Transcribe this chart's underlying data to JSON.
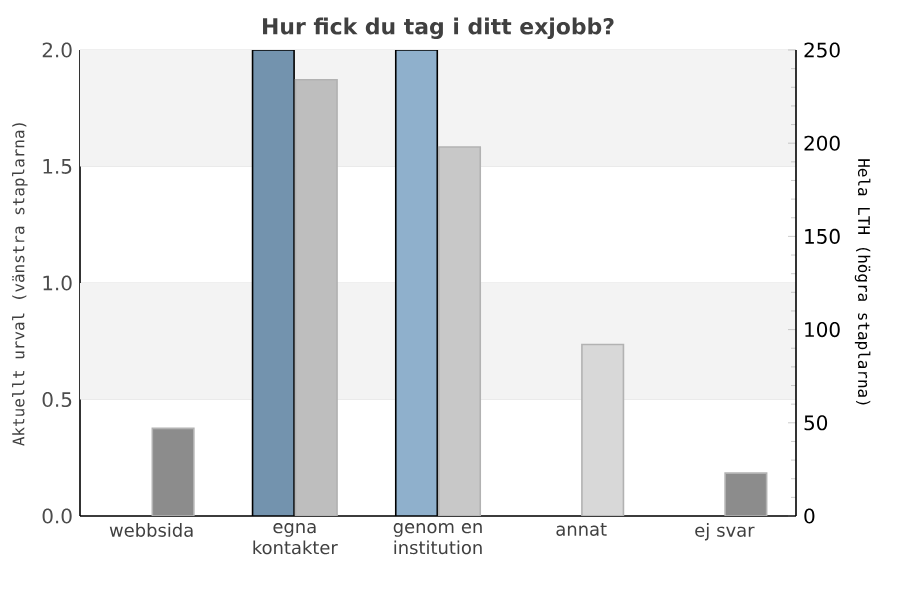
{
  "chart_data": {
    "type": "bar",
    "title": "Hur fick du tag i ditt exjobb?",
    "ylabel": "Aktuellt urval (vänstra staplarna)",
    "y2label": "Hela LTH (högra staplarna)",
    "categories": [
      "webbsida",
      "egna kontakter",
      "genom en institution",
      "annat",
      "ej svar"
    ],
    "series": [
      {
        "axis": "y",
        "colors": [
          "#7393ae",
          "#7393ae",
          "#8fb0cc",
          "#8fb0cc",
          "#8fb0cc"
        ],
        "values": [
          null,
          2,
          2,
          null,
          null
        ]
      },
      {
        "axis": "y2",
        "colors": [
          "#8c8c8c",
          "#bebebe",
          "#c8c8c8",
          "#d8d8d8",
          "#8c8c8c"
        ],
        "values": [
          47,
          234,
          198,
          92,
          23
        ]
      }
    ],
    "ylim": [
      0,
      2
    ],
    "yticks": [
      {
        "value": 0,
        "label": "0.0"
      },
      {
        "value": 0.5,
        "label": "0.5"
      },
      {
        "value": 1,
        "label": "1.0"
      },
      {
        "value": 1.5,
        "label": "1.5"
      },
      {
        "value": 2,
        "label": "2.0"
      }
    ],
    "y2lim": [
      0,
      250
    ],
    "y2ticks": [
      0,
      50,
      100,
      150,
      200,
      250
    ],
    "grid": "y",
    "bands": [
      {
        "axis": "y",
        "from": 0.5,
        "to": 1,
        "color": "#f3f3f3"
      },
      {
        "axis": "y",
        "from": 1.5,
        "to": 2,
        "color": "#f3f3f3"
      }
    ]
  }
}
